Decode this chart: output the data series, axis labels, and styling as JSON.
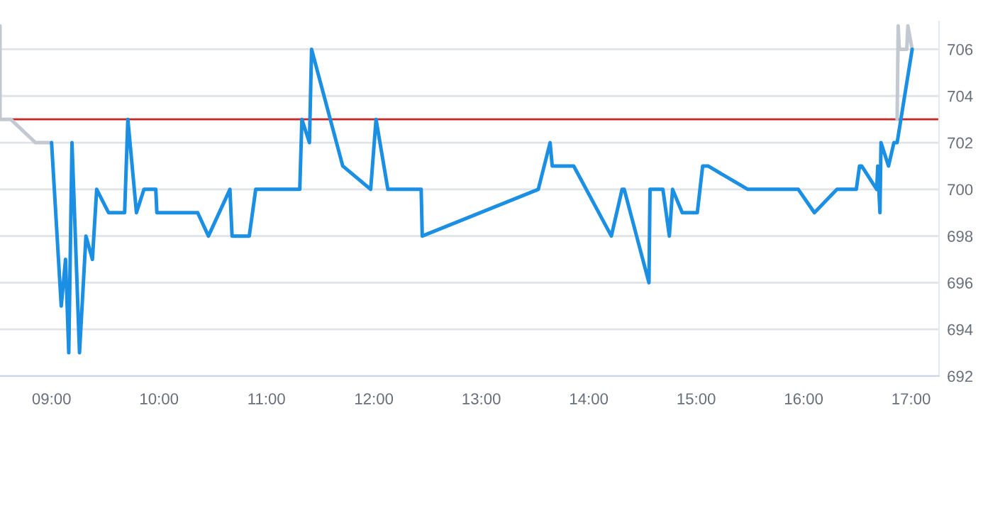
{
  "chart_data": {
    "type": "line",
    "xlim": [
      8.52,
      17.26
    ],
    "ylim": [
      692,
      707.2
    ],
    "xticks": [
      {
        "value": 9,
        "label": "09:00"
      },
      {
        "value": 10,
        "label": "10:00"
      },
      {
        "value": 11,
        "label": "11:00"
      },
      {
        "value": 12,
        "label": "12:00"
      },
      {
        "value": 13,
        "label": "13:00"
      },
      {
        "value": 14,
        "label": "14:00"
      },
      {
        "value": 15,
        "label": "15:00"
      },
      {
        "value": 16,
        "label": "16:00"
      },
      {
        "value": 17,
        "label": "17:00"
      }
    ],
    "yticks": [
      692,
      694,
      696,
      698,
      700,
      702,
      704,
      706
    ],
    "grid": "y",
    "legend": false,
    "marker": "none",
    "line_style": "solid",
    "ref_lines": [
      {
        "axis": "y",
        "value": 703,
        "color": "#cc2222"
      }
    ],
    "series": [
      {
        "color": "#c2c9d1",
        "x": [
          8.52,
          8.52,
          8.62,
          8.85,
          9.0
        ],
        "values": [
          707,
          703,
          703,
          702,
          702
        ]
      },
      {
        "color": "#c2c9d1",
        "x": [
          16.87,
          16.88,
          16.89,
          16.96,
          16.97,
          17.01
        ],
        "values": [
          703,
          707,
          706,
          706,
          707,
          706
        ]
      },
      {
        "color": "#1a8fe3",
        "x": [
          9.0,
          9.09,
          9.13,
          9.16,
          9.19,
          9.26,
          9.32,
          9.38,
          9.42,
          9.53,
          9.68,
          9.71,
          9.79,
          9.86,
          9.97,
          9.98,
          10.36,
          10.46,
          10.66,
          10.68,
          10.84,
          10.9,
          11.31,
          11.33,
          11.4,
          11.42,
          11.71,
          11.97,
          12.02,
          12.13,
          12.44,
          12.45,
          13.53,
          13.64,
          13.66,
          13.86,
          14.21,
          14.31,
          14.33,
          14.56,
          14.57,
          14.69,
          14.75,
          14.78,
          14.87,
          15.01,
          15.06,
          15.11,
          15.48,
          15.95,
          16.1,
          16.31,
          16.49,
          16.52,
          16.54,
          16.68,
          16.69,
          16.7,
          16.71,
          16.72,
          16.79,
          16.84,
          16.87,
          17.01
        ],
        "values": [
          702,
          695,
          697,
          693,
          702,
          693,
          698,
          697,
          700,
          699,
          699,
          703,
          699,
          700,
          700,
          699,
          699,
          698,
          700,
          698,
          698,
          700,
          700,
          703,
          702,
          706,
          701,
          700,
          703,
          700,
          700,
          698,
          700,
          702,
          701,
          701,
          698,
          700,
          700,
          696,
          700,
          700,
          698,
          700,
          699,
          699,
          701,
          701,
          700,
          700,
          699,
          700,
          700,
          701,
          701,
          700,
          701,
          700,
          699,
          702,
          701,
          702,
          702,
          706
        ]
      }
    ]
  }
}
